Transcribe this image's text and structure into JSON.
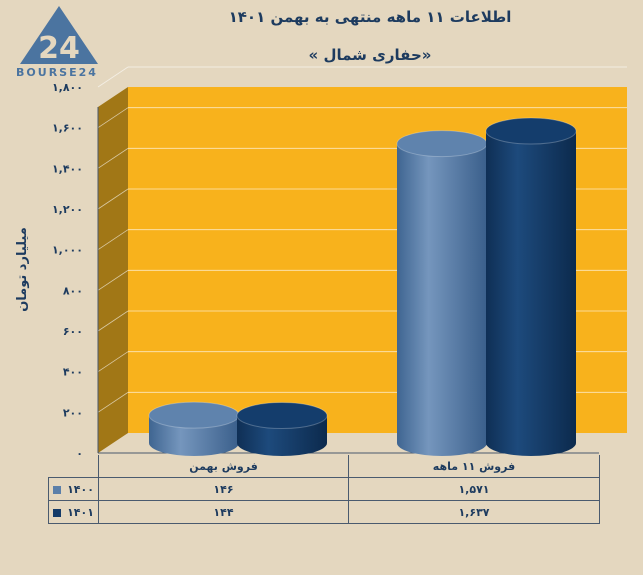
{
  "title": "اطلاعات ۱۱ ماهه منتهی به بهمن ۱۴۰۱",
  "subtitle": "«حفاری شمال »",
  "logo": {
    "text": "BOURSE24",
    "mark": "24"
  },
  "colors": {
    "background": "#e4d7bf",
    "plot_fill": "#f8b21c",
    "plot_wall": "#a17716",
    "series_1400": "#5b7fa9",
    "series_1401": "#143b68",
    "text": "#1d3b5f"
  },
  "chart_data": {
    "type": "bar",
    "categories": [
      "فروش بهمن",
      "فروش ۱۱ ماهه"
    ],
    "series": [
      {
        "name": "۱۴۰۰",
        "values": [
          146,
          1571
        ],
        "labels": [
          "۱۴۶",
          "۱,۵۷۱"
        ]
      },
      {
        "name": "۱۴۰۱",
        "values": [
          144,
          1637
        ],
        "labels": [
          "۱۴۴",
          "۱,۶۳۷"
        ]
      }
    ],
    "ylabel": "میلیارد تومان",
    "ylim": [
      0,
      1800
    ],
    "yticks": [
      0,
      200,
      400,
      600,
      800,
      1000,
      1200,
      1400,
      1600,
      1800
    ],
    "ytick_labels": [
      "۰",
      "۲۰۰",
      "۴۰۰",
      "۶۰۰",
      "۸۰۰",
      "۱,۰۰۰",
      "۱,۲۰۰",
      "۱,۴۰۰",
      "۱,۶۰۰",
      "۱,۸۰۰"
    ],
    "grid": true,
    "legend": "data-table"
  }
}
